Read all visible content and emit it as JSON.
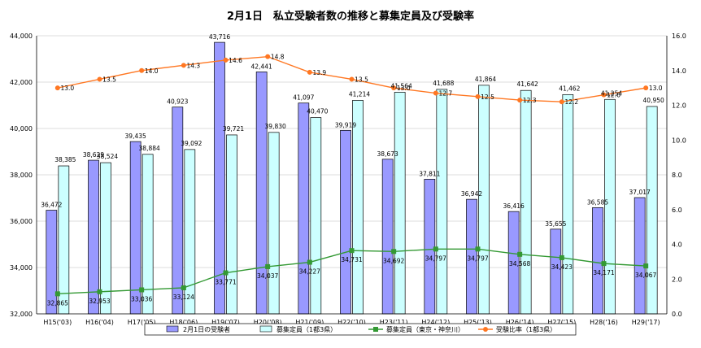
{
  "chart_data": {
    "type": "bar+line",
    "title": "2月1日　私立受験者数の推移と募集定員及び受験率",
    "categories": [
      "H15('03)",
      "H16('04)",
      "H17('05)",
      "H18('06)",
      "H19('07)",
      "H20('08)",
      "H21('09)",
      "H22('10)",
      "H23('11)",
      "H24('12)",
      "H25('13)",
      "H26('14)",
      "H27('15)",
      "H28('16)",
      "H29('17)"
    ],
    "y_left": {
      "min": 32000,
      "max": 44000,
      "step": 2000,
      "ticks": [
        "32,000",
        "34,000",
        "36,000",
        "38,000",
        "40,000",
        "42,000",
        "44,000"
      ]
    },
    "y_right": {
      "min": 0.0,
      "max": 16.0,
      "step": 2.0,
      "ticks": [
        "0.0",
        "2.0",
        "4.0",
        "6.0",
        "8.0",
        "10.0",
        "12.0",
        "14.0",
        "16.0"
      ]
    },
    "series": [
      {
        "name": "2月1日の受験者",
        "kind": "bar",
        "axis": "left",
        "color": "#9999ff",
        "values": [
          36472,
          38629,
          39435,
          40923,
          43716,
          42441,
          41097,
          39919,
          38673,
          37811,
          36942,
          36416,
          35655,
          36585,
          37017
        ],
        "labels": [
          "36,472",
          "38,629",
          "39,435",
          "40,923",
          "43,716",
          "42,441",
          "41,097",
          "39,919",
          "38,673",
          "37,811",
          "36,942",
          "36,416",
          "35,655",
          "36,585",
          "37,017"
        ]
      },
      {
        "name": "募集定員（1都3県）",
        "kind": "bar",
        "axis": "left",
        "color": "#ccffff",
        "values": [
          38385,
          38524,
          38884,
          39092,
          39721,
          39830,
          40470,
          41214,
          41564,
          41688,
          41864,
          41642,
          41462,
          41254,
          40950
        ],
        "labels": [
          "38,385",
          "38,524",
          "38,884",
          "39,092",
          "39,721",
          "39,830",
          "40,470",
          "41,214",
          "41,564",
          "41,688",
          "41,864",
          "41,642",
          "41,462",
          "41,254",
          "40,950"
        ]
      },
      {
        "name": "募集定員（東京・神奈川）",
        "kind": "line",
        "axis": "left",
        "color": "#339933",
        "values": [
          32865,
          32953,
          33036,
          33124,
          33771,
          34037,
          34227,
          34731,
          34692,
          34797,
          34797,
          34568,
          34423,
          34171,
          34067
        ],
        "labels": [
          "32,865",
          "32,953",
          "33,036",
          "33,124",
          "33,771",
          "34,037",
          "34,227",
          "34,731",
          "34,692",
          "34,797",
          "34,797",
          "34,568",
          "34,423",
          "34,171",
          "34,067"
        ]
      },
      {
        "name": "受験比率（1都3県）",
        "kind": "line",
        "axis": "right",
        "color": "#ff7722",
        "values": [
          13.0,
          13.5,
          14.0,
          14.3,
          14.6,
          14.8,
          13.9,
          13.5,
          13.0,
          12.7,
          12.5,
          12.3,
          12.2,
          12.6,
          13.0
        ],
        "labels": [
          "13.0",
          "13.5",
          "14.0",
          "14.3",
          "14.6",
          "14.8",
          "13.9",
          "13.5",
          "13.0",
          "12.7",
          "12.5",
          "12.3",
          "12.2",
          "12.6",
          "13.0"
        ]
      }
    ],
    "grid": true,
    "legend_position": "bottom"
  }
}
